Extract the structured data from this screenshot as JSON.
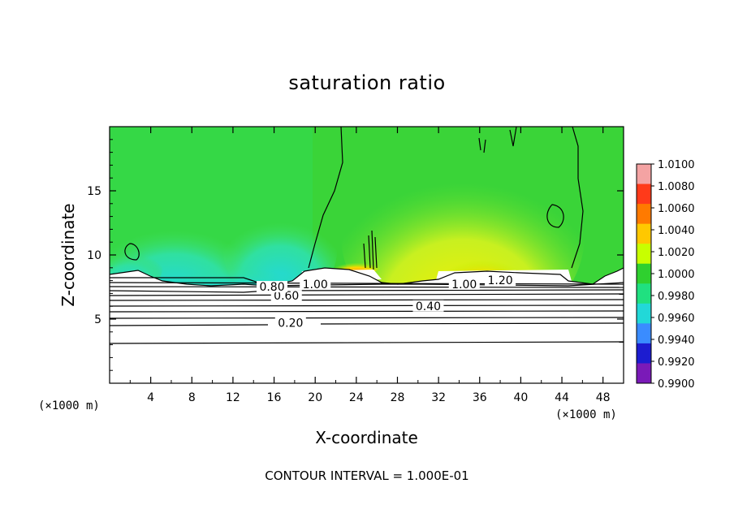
{
  "title": "saturation ratio",
  "xlabel": "X-coordinate",
  "ylabel": "Z-coordinate",
  "x_unit": "(×1000 m)",
  "footer": "CONTOUR INTERVAL = 1.000E-01",
  "chart_data": {
    "type": "heatmap",
    "title": "saturation ratio",
    "xlabel": "X-coordinate",
    "ylabel": "Z-coordinate",
    "xlim": [
      0,
      50
    ],
    "ylim": [
      0,
      20
    ],
    "x_ticks": [
      4,
      8,
      12,
      16,
      20,
      24,
      28,
      32,
      36,
      40,
      44,
      48
    ],
    "y_ticks": [
      5,
      10,
      15
    ],
    "x_unit": "(×1000 m)",
    "colorbar": {
      "levels": [
        "1.0100",
        "1.0080",
        "1.0060",
        "1.0040",
        "1.0020",
        "1.0000",
        "0.9980",
        "0.9960",
        "0.9940",
        "0.9920",
        "0.9900"
      ],
      "colors": [
        "#f4a3a3",
        "#ff3a1a",
        "#ff7a00",
        "#ffc800",
        "#c8ff00",
        "#2fd02f",
        "#20e080",
        "#22d8d8",
        "#3a8cff",
        "#1c1cd0",
        "#7a1ab8"
      ]
    },
    "contour_labels": [
      {
        "text": "0.20",
        "x": 17.6,
        "y": 4.6
      },
      {
        "text": "0.40",
        "x": 31.0,
        "y": 5.9
      },
      {
        "text": "0.60",
        "x": 17.2,
        "y": 6.7
      },
      {
        "text": "0.80",
        "x": 15.8,
        "y": 7.4
      },
      {
        "text": "1.00",
        "x": 20.0,
        "y": 7.6
      },
      {
        "text": "1.00",
        "x": 34.5,
        "y": 7.6
      },
      {
        "text": "1.20",
        "x": 38.0,
        "y": 7.9
      }
    ],
    "contour_interval": "1.000E-01"
  }
}
